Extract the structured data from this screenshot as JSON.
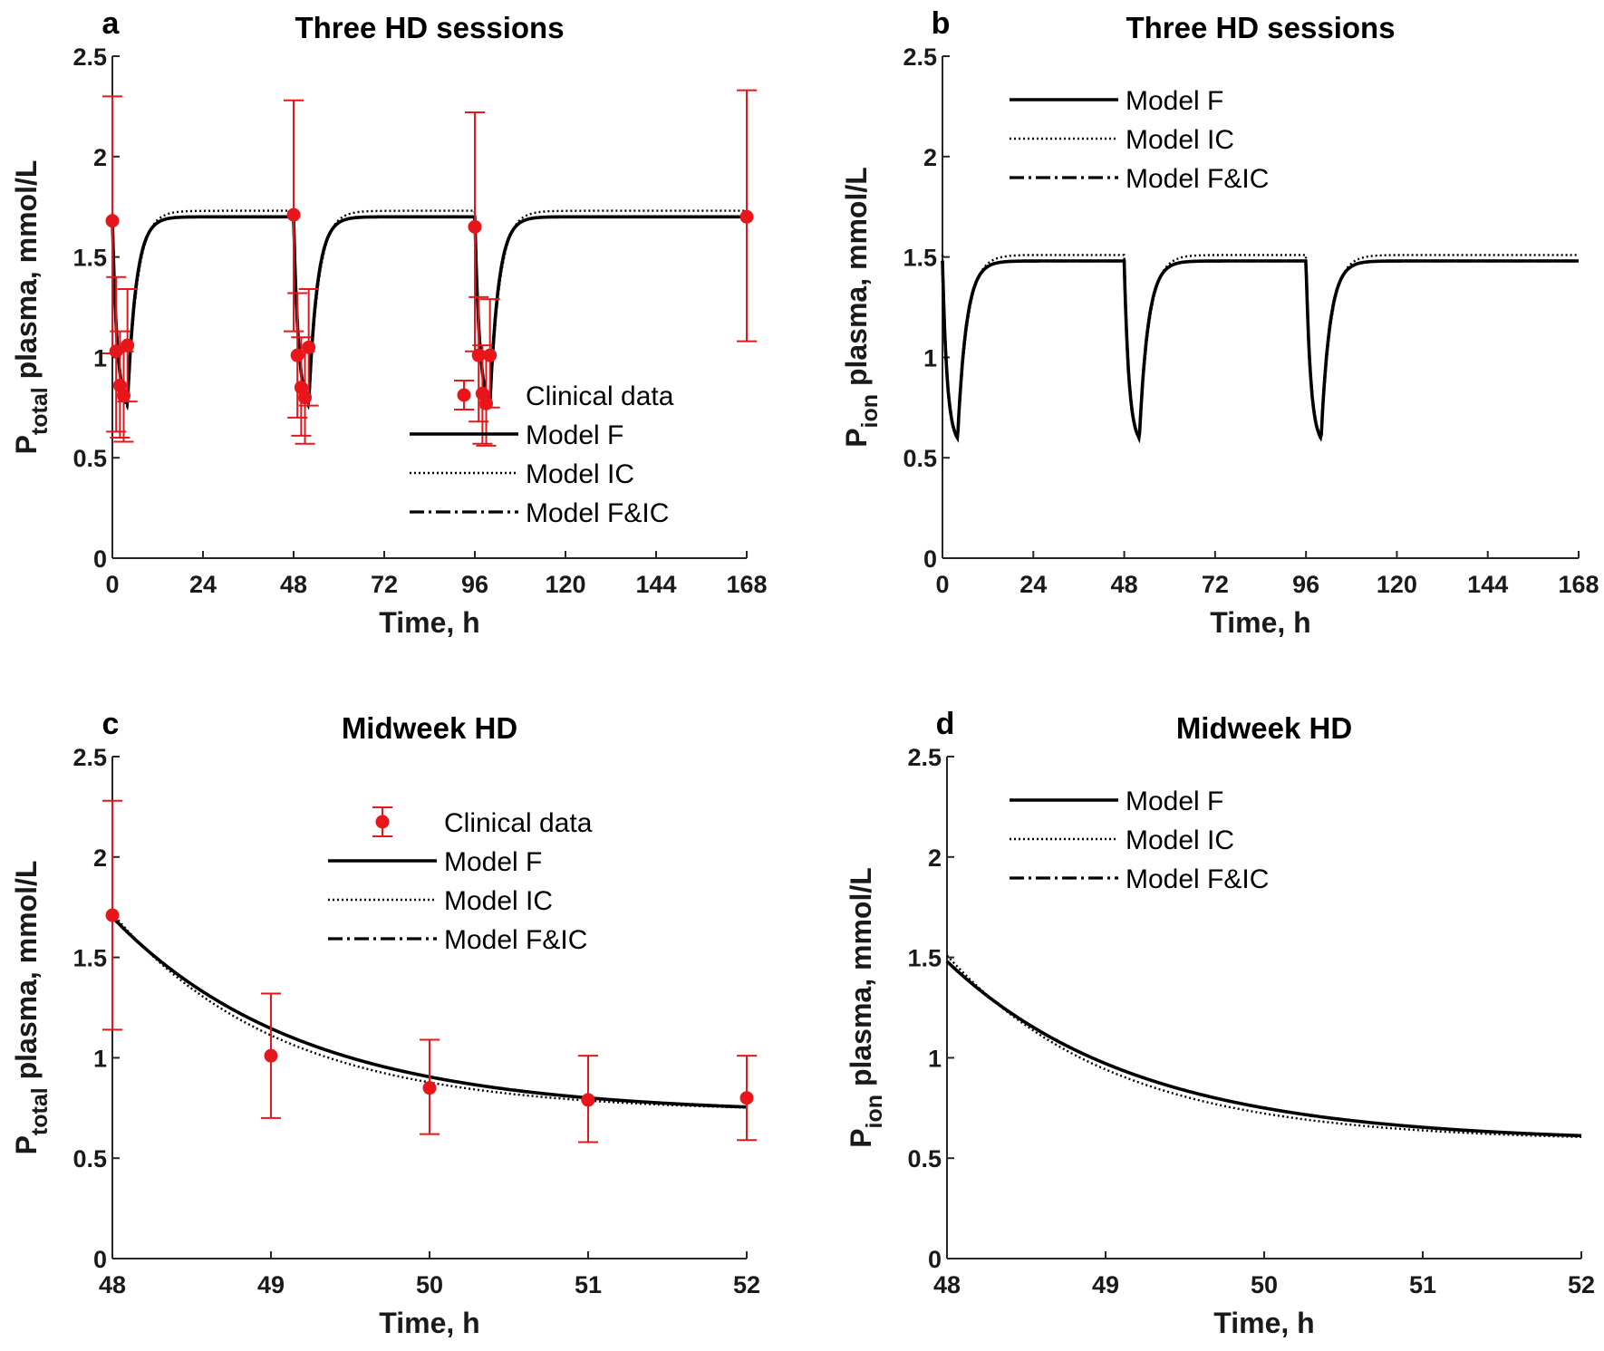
{
  "colors": {
    "clinical": "#e8161b",
    "model": "#000000",
    "axis": "#262626"
  },
  "legend_labels": {
    "clinical": "Clinical data",
    "model_f": "Model F",
    "model_ic": "Model IC",
    "model_fic": "Model F&IC"
  },
  "chart_data": [
    {
      "id": "a",
      "panel_label": "a",
      "type": "line",
      "title": "Three HD sessions",
      "xlabel": "Time, h",
      "ylabel": {
        "main": "P",
        "sub": "total",
        "rest": " plasma, mmol/L"
      },
      "xlim": [
        0,
        168
      ],
      "ylim": [
        0,
        2.5
      ],
      "xticks": [
        0,
        24,
        48,
        72,
        96,
        120,
        144,
        168
      ],
      "yticks": [
        0,
        0.5,
        1,
        1.5,
        2,
        2.5
      ],
      "yticklabels": [
        "0",
        "0.5",
        "1",
        "1.5",
        "2",
        "2.5"
      ],
      "legend": [
        "Clinical data",
        "Model F",
        "Model IC",
        "Model F&IC"
      ],
      "legend_position": "right-middle",
      "model": {
        "kind": "sessions",
        "sessions": [
          0,
          48,
          96
        ],
        "start": 1.69,
        "start_ic": 1.72,
        "min_f": 0.78,
        "min_ic": 0.76,
        "steady_f": 1.7,
        "steady_ic": 1.73,
        "hd_duration": 4,
        "rec_tau": 2.3,
        "rec_tau_ic": 2.6
      },
      "clinical": {
        "x": [
          0,
          1,
          2,
          3,
          4,
          48,
          49,
          50,
          51,
          52,
          96,
          97,
          98,
          99,
          100,
          168
        ],
        "y": [
          1.68,
          1.03,
          0.86,
          0.81,
          1.06,
          1.71,
          1.01,
          0.85,
          0.8,
          1.05,
          1.65,
          1.01,
          0.82,
          0.77,
          1.01,
          1.7
        ],
        "err_low": [
          1.02,
          0.63,
          0.6,
          0.58,
          0.78,
          1.13,
          0.7,
          0.61,
          0.57,
          0.76,
          1.03,
          0.68,
          0.57,
          0.56,
          0.75,
          1.08
        ],
        "err_high": [
          2.3,
          1.4,
          1.13,
          1.03,
          1.34,
          2.28,
          1.32,
          1.1,
          1.03,
          1.34,
          2.22,
          1.3,
          1.06,
          1.0,
          1.29,
          2.33
        ]
      }
    },
    {
      "id": "b",
      "panel_label": "b",
      "type": "line",
      "title": "Three HD sessions",
      "xlabel": "Time, h",
      "ylabel": {
        "main": "P",
        "sub": "ion",
        "rest": " plasma, mmol/L"
      },
      "xlim": [
        0,
        168
      ],
      "ylim": [
        0,
        2.5
      ],
      "xticks": [
        0,
        24,
        48,
        72,
        96,
        120,
        144,
        168
      ],
      "yticks": [
        0,
        0.5,
        1,
        1.5,
        2,
        2.5
      ],
      "yticklabels": [
        "0",
        "0.5",
        "1",
        "1.5",
        "2",
        "2.5"
      ],
      "legend": [
        "Model F",
        "Model IC",
        "Model F&IC"
      ],
      "legend_position": "top-center",
      "model": {
        "kind": "sessions",
        "sessions": [
          0,
          48,
          96
        ],
        "start": 1.48,
        "start_ic": 1.51,
        "min_f": 0.61,
        "min_ic": 0.6,
        "steady_f": 1.48,
        "steady_ic": 1.51,
        "hd_duration": 4,
        "rec_tau": 2.3,
        "rec_tau_ic": 2.6
      }
    },
    {
      "id": "c",
      "panel_label": "c",
      "type": "line",
      "title": "Midweek HD",
      "xlabel": "Time, h",
      "ylabel": {
        "main": "P",
        "sub": "total",
        "rest": " plasma, mmol/L"
      },
      "xlim": [
        48,
        52
      ],
      "ylim": [
        0,
        2.5
      ],
      "xticks": [
        48,
        49,
        50,
        51,
        52
      ],
      "yticks": [
        0,
        0.5,
        1,
        1.5,
        2,
        2.5
      ],
      "yticklabels": [
        "0",
        "0.5",
        "1",
        "1.5",
        "2",
        "2.5"
      ],
      "legend": [
        "Clinical data",
        "Model F",
        "Model IC",
        "Model F&IC"
      ],
      "legend_position": "top-right",
      "model": {
        "kind": "decay",
        "start": 1.7,
        "start_ic": 1.72,
        "min_f": 0.72,
        "min_ic": 0.73,
        "tau": 1.2,
        "tau_ic": 1.05
      },
      "clinical": {
        "x": [
          48,
          49,
          50,
          51,
          52
        ],
        "y": [
          1.71,
          1.01,
          0.85,
          0.79,
          0.8
        ],
        "err_low": [
          1.14,
          0.7,
          0.62,
          0.58,
          0.59
        ],
        "err_high": [
          2.28,
          1.32,
          1.09,
          1.01,
          1.01
        ]
      }
    },
    {
      "id": "d",
      "panel_label": "d",
      "type": "line",
      "title": "Midweek HD",
      "xlabel": "Time, h",
      "ylabel": {
        "main": "P",
        "sub": "ion",
        "rest": " plasma, mmol/L"
      },
      "xlim": [
        48,
        52
      ],
      "ylim": [
        0,
        2.5
      ],
      "xticks": [
        48,
        49,
        50,
        51,
        52
      ],
      "yticks": [
        0,
        0.5,
        1,
        1.5,
        2,
        2.5
      ],
      "yticklabels": [
        "0",
        "0.5",
        "1",
        "1.5",
        "2",
        "2.5"
      ],
      "legend": [
        "Model F",
        "Model IC",
        "Model F&IC"
      ],
      "legend_position": "top-center",
      "model": {
        "kind": "decay",
        "start": 1.48,
        "start_ic": 1.51,
        "min_f": 0.58,
        "min_ic": 0.585,
        "tau": 1.2,
        "tau_ic": 1.05
      }
    }
  ]
}
